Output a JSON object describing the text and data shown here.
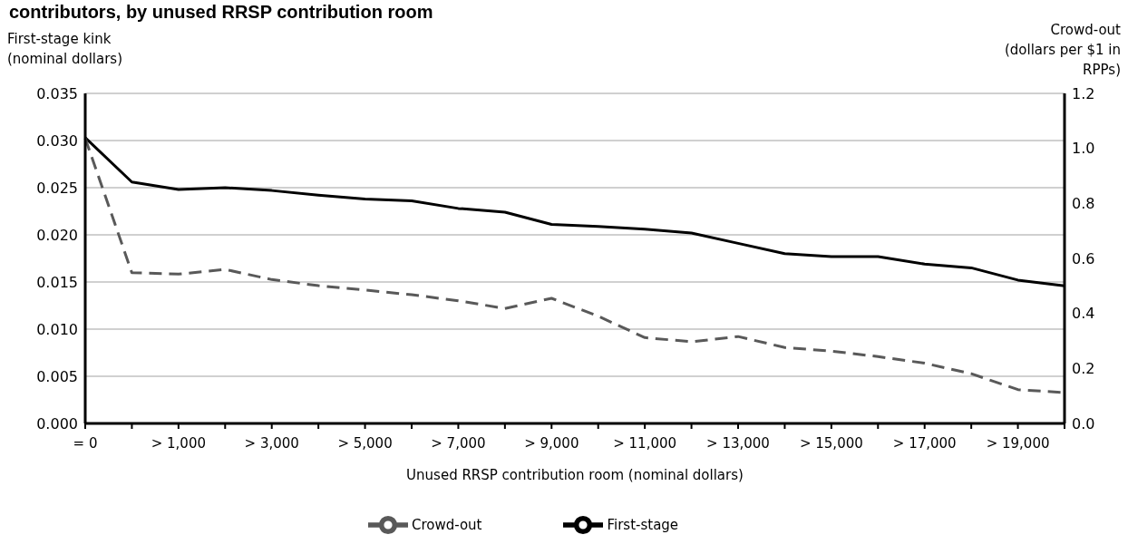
{
  "chart_data": {
    "type": "line",
    "title": "contributors, by unused RRSP contribution room",
    "ylabel": "First-stage kink\n(nominal dollars)",
    "y2label": "Crowd-out\n(dollars per $1 in\nRPPs)",
    "xlabel": "Unused RRSP contribution room (nominal dollars)",
    "categories": [
      "= 0",
      null,
      "> 1,000",
      null,
      "> 3,000",
      null,
      "> 5,000",
      null,
      "> 7,000",
      null,
      "> 9,000",
      null,
      "> 11,000",
      null,
      "> 13,000",
      null,
      "> 15,000",
      null,
      "> 17,000",
      null,
      "> 19,000",
      null
    ],
    "series": [
      {
        "name": "First-stage",
        "color": "#000000",
        "line_style": "solid",
        "values": [
          0.0303,
          0.0256,
          0.0248,
          0.025,
          0.0247,
          0.0242,
          0.0238,
          0.0236,
          0.0228,
          0.0224,
          0.0211,
          0.0209,
          0.0206,
          0.0202,
          0.0191,
          0.018,
          0.0177,
          0.0177,
          0.0169,
          0.0165,
          0.0152,
          0.0146
        ]
      },
      {
        "name": "Crowd-out",
        "color": "#595959",
        "line_style": "dashed",
        "axis": "y2",
        "values": [
          1.037,
          0.548,
          0.543,
          0.56,
          0.523,
          0.501,
          0.485,
          0.468,
          0.446,
          0.418,
          0.455,
          0.39,
          0.312,
          0.297,
          0.316,
          0.276,
          0.263,
          0.243,
          0.219,
          0.181,
          0.123,
          0.112
        ]
      }
    ],
    "ylim": [
      0,
      0.035
    ],
    "yticks": [
      {
        "value": 0,
        "label": "0.000"
      },
      0.005,
      {
        "value": 0.01,
        "label": "0.010"
      },
      0.015,
      {
        "value": 0.02,
        "label": "0.020"
      },
      0.025,
      {
        "value": 0.03,
        "label": "0.030"
      },
      0.035
    ],
    "y2lim": [
      0,
      1.2
    ],
    "y2ticks": [
      {
        "value": 0,
        "label": "0.0"
      },
      0.2,
      0.4,
      0.6,
      0.8,
      {
        "value": 1,
        "label": "1.0"
      },
      1.2
    ],
    "grid": "y",
    "legend": "bottom",
    "marker": "none"
  }
}
